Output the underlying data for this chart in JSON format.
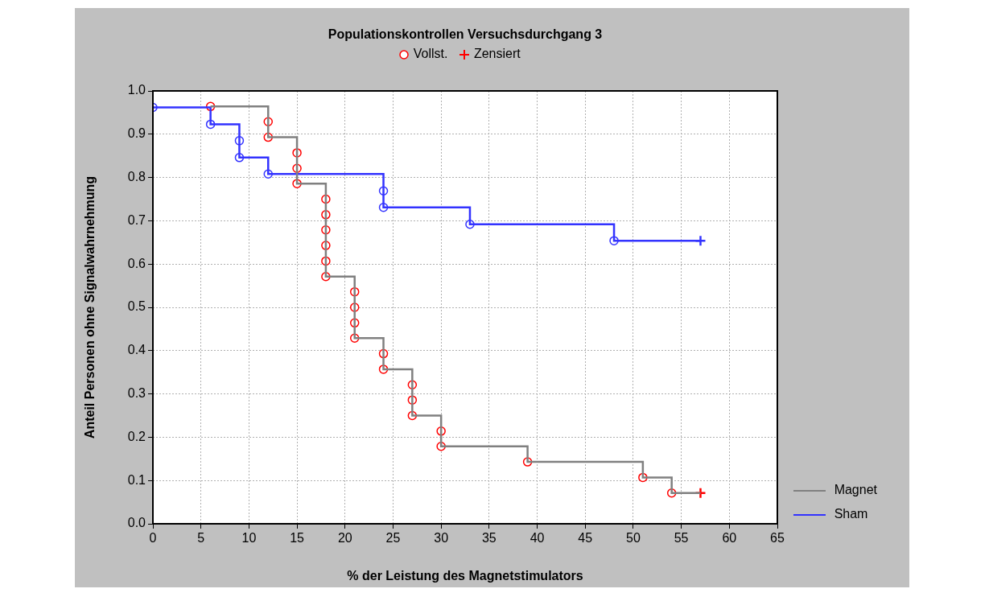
{
  "chart_data": {
    "type": "step",
    "title": "Populationskontrollen Versuchsdurchgang 3",
    "xlabel": "% der Leistung des Magnetstimulators",
    "ylabel": "Anteil Personen ohne Signalwahrnehmung",
    "xlim": [
      0,
      65
    ],
    "xticks": [
      0,
      5,
      10,
      15,
      20,
      25,
      30,
      35,
      40,
      45,
      50,
      55,
      60,
      65
    ],
    "ylim": [
      0,
      1
    ],
    "yticks": [
      {
        "value": 0,
        "label": "0.0"
      },
      0.1,
      0.2,
      0.3,
      0.4,
      0.5,
      0.6,
      0.7,
      0.8,
      0.9,
      {
        "value": 1,
        "label": "1.0"
      }
    ],
    "grid": true,
    "legend": "right",
    "series": [
      {
        "name": "Magnet",
        "color": "#808080",
        "x": [
          6,
          12,
          15,
          18,
          21,
          24,
          27,
          30,
          39,
          51,
          54,
          57
        ],
        "values": [
          0.964,
          0.893,
          0.786,
          0.571,
          0.429,
          0.357,
          0.25,
          0.179,
          0.143,
          0.107,
          0.071,
          0.071
        ]
      },
      {
        "name": "Sham",
        "color": "#3333ff",
        "x": [
          0,
          6,
          9,
          12,
          24,
          33,
          48,
          57
        ],
        "values": [
          0.962,
          0.923,
          0.846,
          0.808,
          0.731,
          0.692,
          0.654,
          0.654
        ]
      },
      {
        "name": "Vollst.",
        "type": "scatter",
        "marker": "circle",
        "color": "#ff0000",
        "x": [
          6,
          12,
          12,
          15,
          15,
          15,
          18,
          18,
          18,
          18,
          18,
          18,
          21,
          21,
          21,
          21,
          24,
          24,
          27,
          27,
          27,
          30,
          30,
          39,
          51,
          54,
          0,
          6,
          9,
          9,
          12,
          24,
          24,
          33,
          48
        ],
        "values": [
          0.964,
          0.929,
          0.893,
          0.857,
          0.821,
          0.786,
          0.75,
          0.714,
          0.679,
          0.643,
          0.607,
          0.571,
          0.536,
          0.5,
          0.464,
          0.429,
          0.393,
          0.357,
          0.321,
          0.286,
          0.25,
          0.214,
          0.179,
          0.143,
          0.107,
          0.071,
          0.962,
          0.923,
          0.885,
          0.846,
          0.808,
          0.769,
          0.731,
          0.692,
          0.654
        ],
        "colors": [
          "#ff0000",
          "#ff0000",
          "#ff0000",
          "#ff0000",
          "#ff0000",
          "#ff0000",
          "#ff0000",
          "#ff0000",
          "#ff0000",
          "#ff0000",
          "#ff0000",
          "#ff0000",
          "#ff0000",
          "#ff0000",
          "#ff0000",
          "#ff0000",
          "#ff0000",
          "#ff0000",
          "#ff0000",
          "#ff0000",
          "#ff0000",
          "#ff0000",
          "#ff0000",
          "#ff0000",
          "#ff0000",
          "#ff0000",
          "#3333ff",
          "#3333ff",
          "#3333ff",
          "#3333ff",
          "#3333ff",
          "#3333ff",
          "#3333ff",
          "#3333ff",
          "#3333ff"
        ]
      },
      {
        "name": "Zensiert",
        "type": "scatter",
        "marker": "cross",
        "color": "#ff0000",
        "x": [
          57,
          57
        ],
        "values": [
          0.071,
          0.654
        ],
        "colors": [
          "#ff0000",
          "#3333ff"
        ]
      }
    ]
  }
}
